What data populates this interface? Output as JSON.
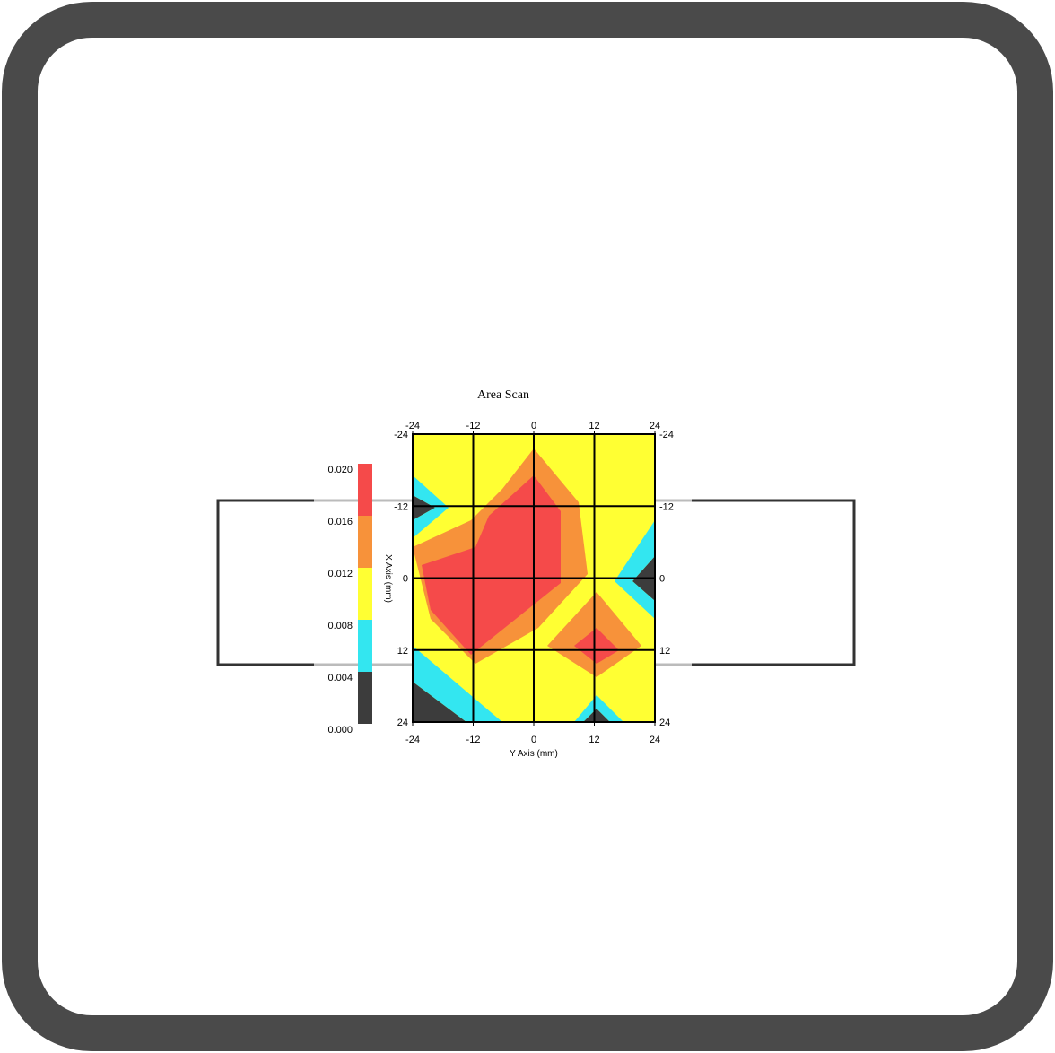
{
  "chart_data": {
    "type": "heatmap",
    "title": "Area Scan",
    "xlabel": "Y Axis (mm)",
    "ylabel": "X Axis (mm)",
    "x_ticks": [
      "-24",
      "-12",
      "0",
      "12",
      "24"
    ],
    "y_ticks": [
      "-24",
      "-12",
      "0",
      "12",
      "24"
    ],
    "xlim": [
      -24,
      24
    ],
    "ylim": [
      -24,
      24
    ],
    "grid": true,
    "legend_position": "left",
    "color_scale": {
      "labels": [
        "0.020",
        "0.016",
        "0.012",
        "0.008",
        "0.004",
        "0.000"
      ],
      "colors": [
        "#f54a4a",
        "#f7923a",
        "#ffff33",
        "#33e6f0",
        "#3c3c3c"
      ]
    },
    "x": [
      -24,
      -12,
      0,
      12,
      24
    ],
    "y": [
      -24,
      -12,
      0,
      12,
      24
    ],
    "values": [
      [
        0.012,
        0.012,
        0.014,
        0.012,
        0.012
      ],
      [
        0.004,
        0.014,
        0.02,
        0.014,
        0.01
      ],
      [
        0.016,
        0.02,
        0.02,
        0.01,
        0.004
      ],
      [
        0.004,
        0.016,
        0.014,
        0.02,
        0.01
      ],
      [
        0.002,
        0.008,
        0.012,
        0.004,
        0.008
      ]
    ]
  }
}
